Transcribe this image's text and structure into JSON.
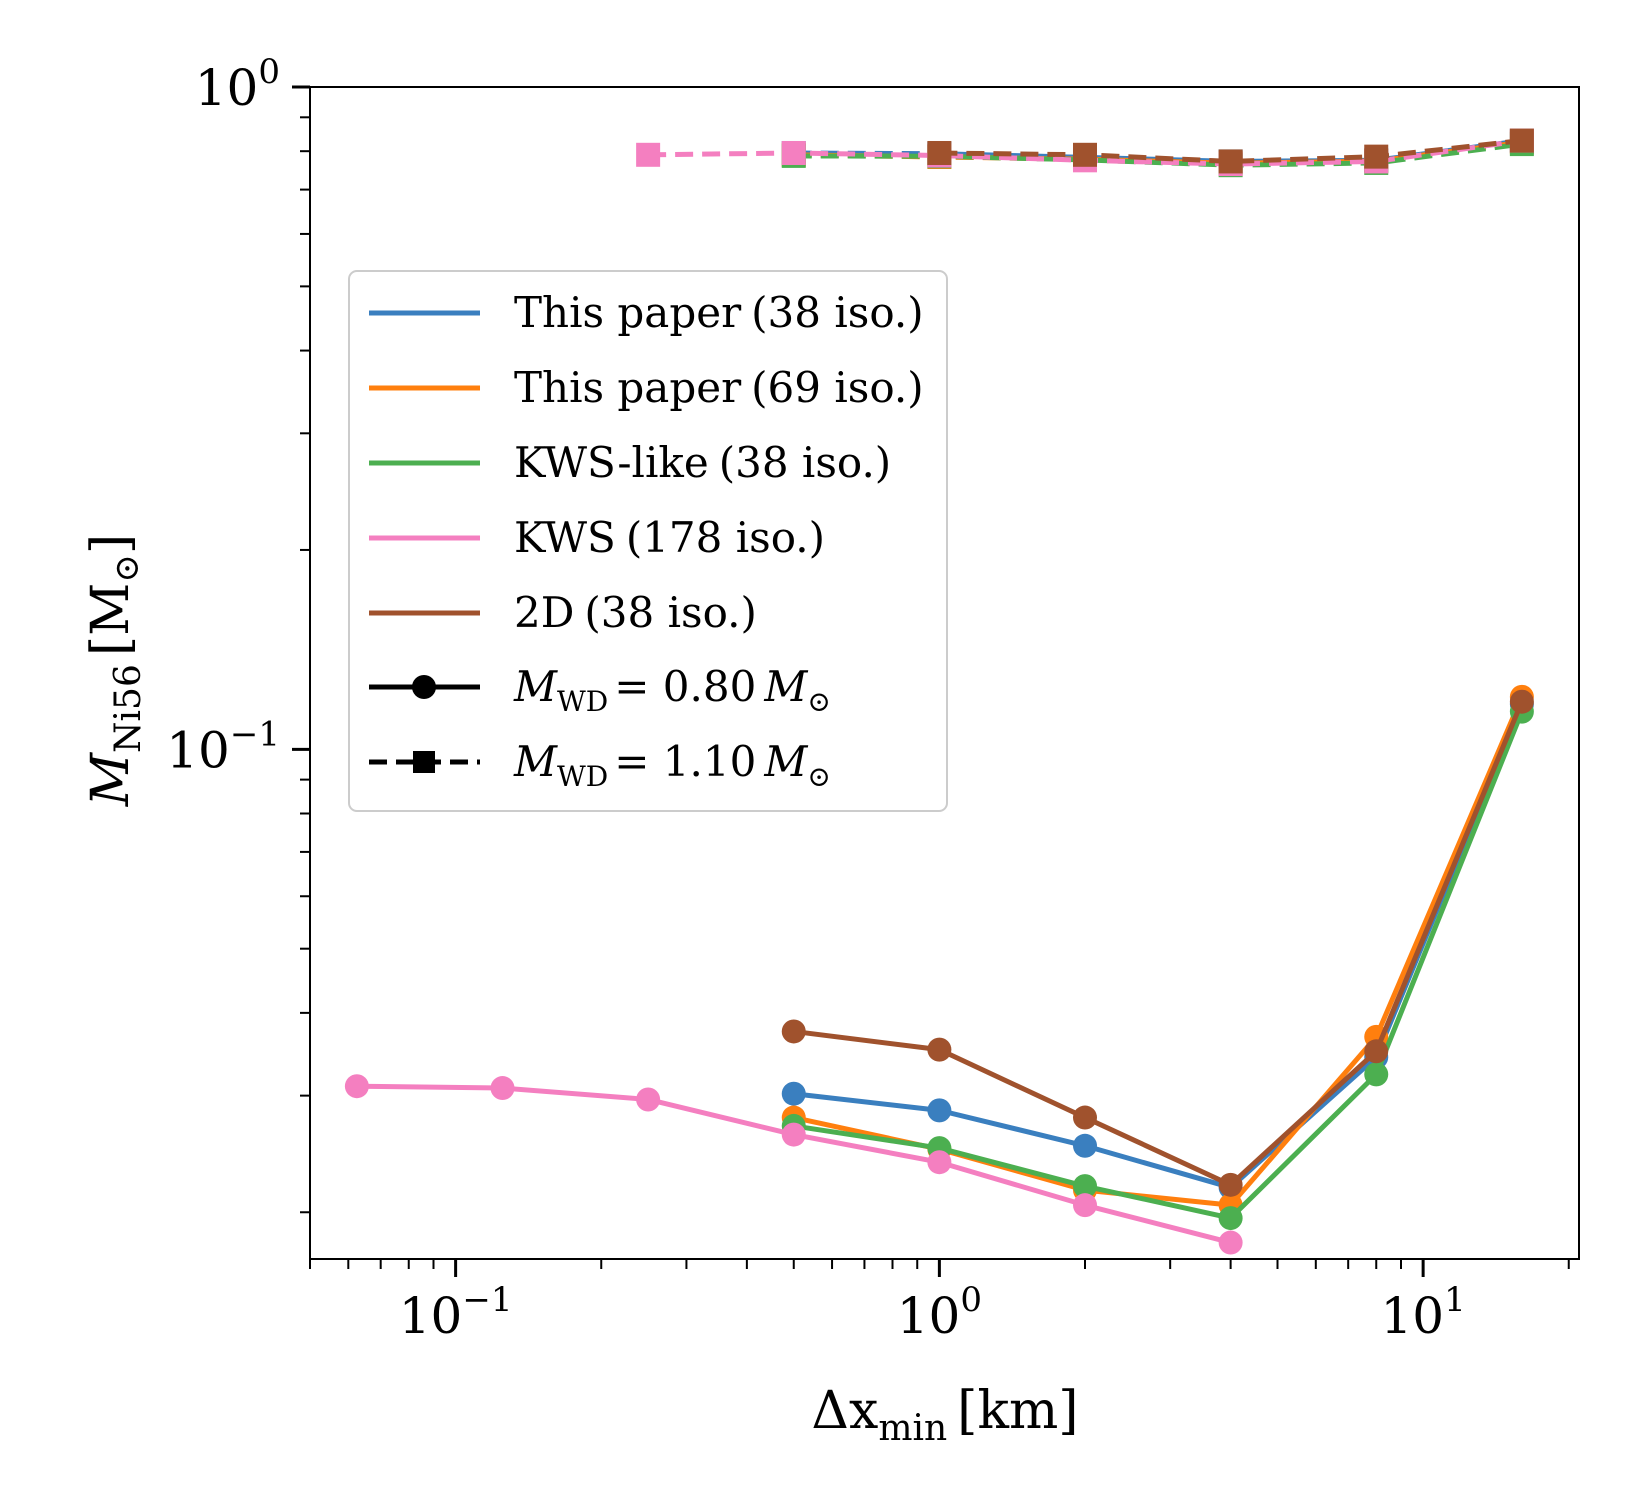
{
  "chart_data": {
    "type": "line",
    "xscale": "log",
    "yscale": "log",
    "xlim": [
      0.05,
      21
    ],
    "ylim": [
      0.017,
      1.0
    ],
    "xlabel": {
      "main": "Δx",
      "sub": "min",
      "unit": "[km]"
    },
    "ylabel": {
      "main": "M",
      "sub": "Ni56",
      "unit_open": "[M",
      "unit_sym": "⊙",
      "unit_close": "]"
    },
    "x_ticks": [
      {
        "value": 0.1,
        "base": "10",
        "exp": "−1"
      },
      {
        "value": 1,
        "base": "10",
        "exp": "0"
      },
      {
        "value": 10,
        "base": "10",
        "exp": "1"
      }
    ],
    "y_ticks": [
      {
        "value": 0.1,
        "base": "10",
        "exp": "−1"
      },
      {
        "value": 1,
        "base": "10",
        "exp": "0"
      }
    ],
    "series": [
      {
        "name": "This paper (38 iso.)",
        "label_main": "This paper",
        "label_paren": "(38 iso.)",
        "color": "#3a7fbf",
        "solid": {
          "x": [
            0.5,
            1,
            2,
            4,
            8,
            16
          ],
          "y": [
            0.0302,
            0.0285,
            0.0252,
            0.0218,
            0.0343,
            0.117
          ]
        },
        "dashed": {
          "x": [
            0.5,
            1,
            2,
            4,
            8,
            16
          ],
          "y": [
            0.795,
            0.793,
            0.783,
            0.772,
            0.775,
            0.83
          ]
        }
      },
      {
        "name": "This paper (69 iso.)",
        "label_main": "This paper",
        "label_paren": "(69 iso.)",
        "color": "#ff7f0e",
        "solid": {
          "x": [
            0.5,
            1,
            2,
            4,
            8,
            16
          ],
          "y": [
            0.0278,
            0.0249,
            0.0216,
            0.0205,
            0.0368,
            0.12
          ]
        },
        "dashed": {
          "x": [
            0.5,
            1,
            2,
            4,
            8,
            16
          ],
          "y": [
            0.79,
            0.784,
            0.778,
            0.767,
            0.773,
            0.825
          ]
        }
      },
      {
        "name": "KWS-like (38 iso.)",
        "label_main": "KWS-like",
        "label_paren": "(38 iso.)",
        "color": "#4caf50",
        "solid": {
          "x": [
            0.5,
            1,
            2,
            4,
            8,
            16
          ],
          "y": [
            0.027,
            0.025,
            0.0219,
            0.0196,
            0.0323,
            0.114
          ]
        },
        "dashed": {
          "x": [
            0.5,
            1,
            2,
            4,
            8,
            16
          ],
          "y": [
            0.787,
            0.786,
            0.776,
            0.762,
            0.768,
            0.82
          ]
        }
      },
      {
        "name": "KWS (178 iso.)",
        "label_main": "KWS",
        "label_paren": "(178 iso.)",
        "color": "#f47fc0",
        "solid": {
          "x": [
            0.0625,
            0.125,
            0.25,
            0.5,
            1,
            2,
            4
          ],
          "y": [
            0.031,
            0.0308,
            0.0296,
            0.0262,
            0.0238,
            0.0205,
            0.018
          ]
        },
        "dashed": {
          "x": [
            0.25,
            0.5,
            1,
            2,
            4,
            8,
            16
          ],
          "y": [
            0.79,
            0.795,
            0.788,
            0.775,
            0.765,
            0.772,
            0.83
          ]
        }
      },
      {
        "name": "2D (38 iso.)",
        "label_main": "2D",
        "label_paren": "(38 iso.)",
        "color": "#a0522d",
        "solid": {
          "x": [
            0.5,
            1,
            2,
            4,
            8,
            16
          ],
          "y": [
            0.0375,
            0.0352,
            0.0278,
            0.022,
            0.035,
            0.118
          ]
        },
        "dashed": {
          "x": [
            1,
            2,
            4,
            8,
            16
          ],
          "y": [
            0.795,
            0.79,
            0.772,
            0.785,
            0.83
          ]
        }
      }
    ],
    "legend": {
      "placement": "center-left",
      "marker_entries": [
        {
          "style": "solid",
          "marker": "circle",
          "label_var": "M",
          "label_sub": "WD",
          "label_value": "= 0.80",
          "label_unit": "M",
          "label_sym": "⊙"
        },
        {
          "style": "dashed",
          "marker": "square",
          "label_var": "M",
          "label_sub": "WD",
          "label_value": "= 1.10",
          "label_unit": "M",
          "label_sym": "⊙"
        }
      ]
    }
  }
}
